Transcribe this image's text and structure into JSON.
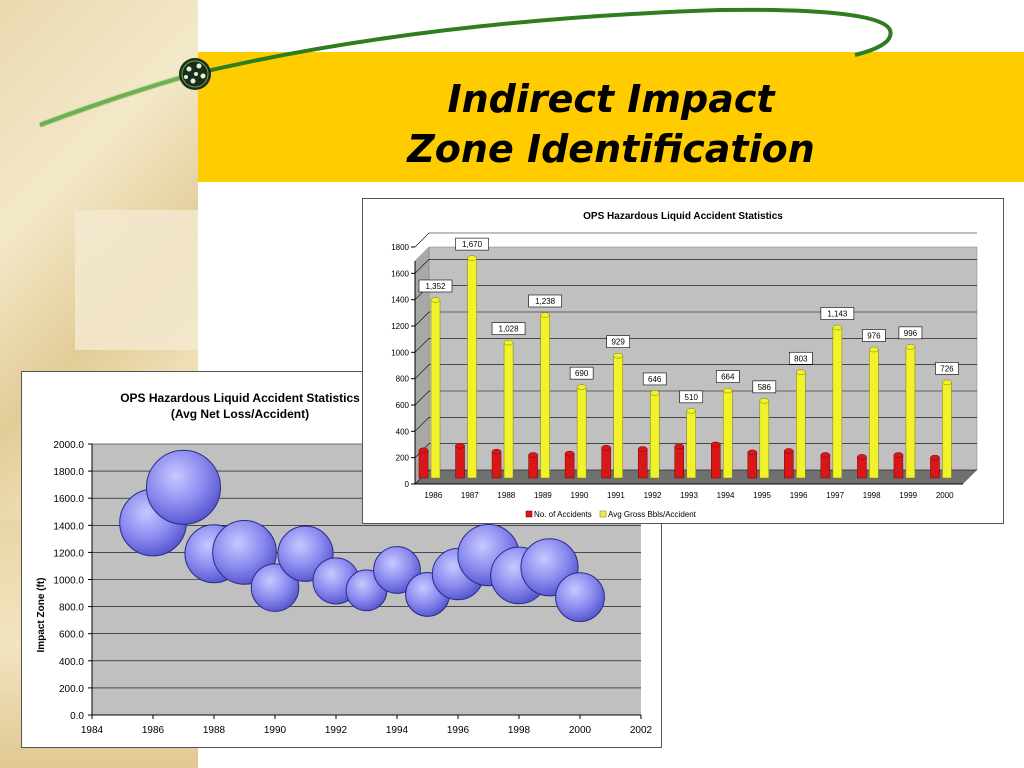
{
  "slide": {
    "title_line1": "Indirect Impact",
    "title_line2": "Zone Identification"
  },
  "colors": {
    "title_bar": "#ffcc00",
    "bubble": "#8a8af0",
    "bar_red": "#d81818",
    "bar_yellow": "#f2f22a"
  },
  "chart_data": [
    {
      "type": "scatter",
      "subtype": "bubble",
      "title": "OPS Hazardous Liquid Accident Statistics",
      "subtitle": "(Avg Net Loss/Accident)",
      "xlabel": "",
      "ylabel": "Impact Zone (ft)",
      "xlim": [
        1984,
        2002
      ],
      "ylim": [
        0,
        2000
      ],
      "x_ticks": [
        "1984",
        "1986",
        "1988",
        "1990",
        "1992",
        "1994",
        "1996",
        "1998",
        "2000",
        "2002"
      ],
      "y_ticks": [
        "0.0",
        "200.0",
        "400.0",
        "600.0",
        "800.0",
        "1000.0",
        "1200.0",
        "1400.0",
        "1600.0",
        "1800.0",
        "2000.0"
      ],
      "grid": true,
      "points": [
        {
          "x": 1986,
          "y": 1420,
          "size": 1352
        },
        {
          "x": 1987,
          "y": 1680,
          "size": 1670
        },
        {
          "x": 1988,
          "y": 1190,
          "size": 1028
        },
        {
          "x": 1989,
          "y": 1200,
          "size": 1238
        },
        {
          "x": 1990,
          "y": 940,
          "size": 690
        },
        {
          "x": 1991,
          "y": 1190,
          "size": 929
        },
        {
          "x": 1992,
          "y": 990,
          "size": 646
        },
        {
          "x": 1993,
          "y": 920,
          "size": 510
        },
        {
          "x": 1994,
          "y": 1070,
          "size": 664
        },
        {
          "x": 1995,
          "y": 890,
          "size": 586
        },
        {
          "x": 1996,
          "y": 1040,
          "size": 803
        },
        {
          "x": 1997,
          "y": 1180,
          "size": 1143
        },
        {
          "x": 1998,
          "y": 1030,
          "size": 976
        },
        {
          "x": 1999,
          "y": 1090,
          "size": 996
        },
        {
          "x": 2000,
          "y": 870,
          "size": 726
        }
      ]
    },
    {
      "type": "bar",
      "title": "OPS Hazardous Liquid Accident Statistics",
      "xlabel": "",
      "ylabel": "",
      "ylim": [
        0,
        1800
      ],
      "y_ticks": [
        "0",
        "200",
        "400",
        "600",
        "800",
        "1000",
        "1200",
        "1400",
        "1600",
        "1800"
      ],
      "grid": true,
      "legend_position": "bottom",
      "categories": [
        "1986",
        "1987",
        "1988",
        "1989",
        "1990",
        "1991",
        "1992",
        "1993",
        "1994",
        "1995",
        "1996",
        "1997",
        "1998",
        "1999",
        "2000"
      ],
      "series": [
        {
          "name": "No. of Accidents",
          "values": [
            210,
            245,
            200,
            175,
            185,
            230,
            220,
            240,
            255,
            195,
            205,
            175,
            160,
            175,
            155
          ]
        },
        {
          "name": "Avg Gross Bbls/Accident",
          "values": [
            1352,
            1670,
            1028,
            1238,
            690,
            929,
            646,
            510,
            664,
            586,
            803,
            1143,
            976,
            996,
            726
          ]
        }
      ],
      "data_labels": [
        "1,352",
        "1,670",
        "1,028",
        "1,238",
        "690",
        "929",
        "646",
        "510",
        "664",
        "586",
        "803",
        "1,143",
        "976",
        "996",
        "726"
      ]
    }
  ]
}
